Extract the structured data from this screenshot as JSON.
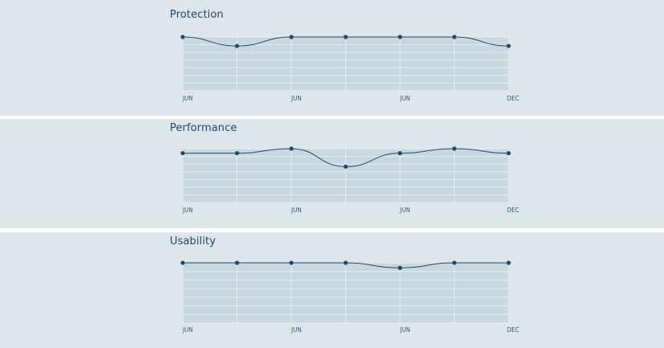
{
  "colors": {
    "panel_bg": "#dde6eb",
    "plot_bg": "#c8d8e0",
    "grid": "#e6eef2",
    "line": "#1c4a69",
    "point": "#1c4a69"
  },
  "chart_data": [
    {
      "type": "line",
      "title": "Protection",
      "x_tick_labels": [
        "JUN",
        "JUN",
        "JUN",
        "DEC"
      ],
      "x_tick_indices": [
        0,
        2,
        4,
        6
      ],
      "values": [
        6,
        5,
        6,
        6,
        6,
        6,
        5
      ],
      "ylim": [
        0,
        6
      ],
      "grid": true
    },
    {
      "type": "line",
      "title": "Performance",
      "x_tick_labels": [
        "JUN",
        "JUN",
        "JUN",
        "DEC"
      ],
      "x_tick_indices": [
        0,
        2,
        4,
        6
      ],
      "values": [
        5.5,
        5.5,
        6,
        4,
        5.5,
        6,
        5.5
      ],
      "ylim": [
        0,
        6
      ],
      "grid": true
    },
    {
      "type": "line",
      "title": "Usability",
      "x_tick_labels": [
        "JUN",
        "JUN",
        "JUN",
        "DEC"
      ],
      "x_tick_indices": [
        0,
        2,
        4,
        6
      ],
      "values": [
        6,
        6,
        6,
        6,
        5.5,
        6,
        6
      ],
      "ylim": [
        0,
        6
      ],
      "grid": true
    }
  ]
}
